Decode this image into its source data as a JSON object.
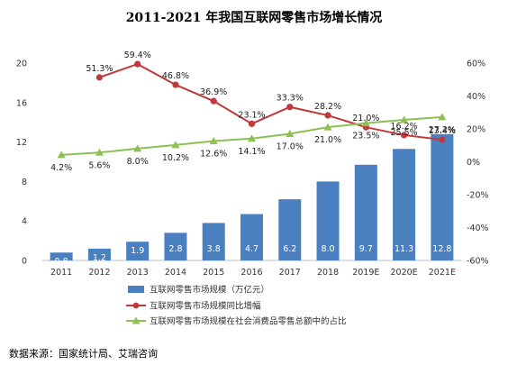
{
  "chart_data": {
    "type": "bar",
    "title": "2011-2021 年我国互联网零售市场增长情况",
    "categories": [
      "2011",
      "2012",
      "2013",
      "2014",
      "2015",
      "2016",
      "2017",
      "2018",
      "2019E",
      "2020E",
      "2021E"
    ],
    "series": [
      {
        "name": "互联网零售市场规模（万亿元）",
        "type": "bar",
        "axis": "left",
        "color": "#4a80c0",
        "values": [
          0.8,
          1.2,
          1.9,
          2.8,
          3.8,
          4.7,
          6.2,
          8.0,
          9.7,
          11.3,
          12.8
        ],
        "labels": [
          "0.8",
          "1.2",
          "1.9",
          "2.8",
          "3.8",
          "4.7",
          "6.2",
          "8.0",
          "9.7",
          "11.3",
          "12.8"
        ]
      },
      {
        "name": "互联网零售市场规模同比增幅",
        "type": "line",
        "axis": "right",
        "color": "#c0393b",
        "values": [
          null,
          51.3,
          59.4,
          46.8,
          36.9,
          23.1,
          33.3,
          28.2,
          21.0,
          16.2,
          13.4
        ],
        "labels": [
          "",
          "51.3%",
          "59.4%",
          "46.8%",
          "36.9%",
          "23.1%",
          "33.3%",
          "28.2%",
          "21.0%",
          "16.2%",
          "13.4%"
        ]
      },
      {
        "name": "互联网零售市场规模在社会消费品零售总额中的占比",
        "type": "line",
        "axis": "right",
        "color": "#8cc152",
        "values": [
          4.2,
          5.6,
          8.0,
          10.2,
          12.6,
          14.1,
          17.0,
          21.0,
          23.5,
          25.5,
          27.2
        ],
        "labels": [
          "4.2%",
          "5.6%",
          "8.0%",
          "10.2%",
          "12.6%",
          "14.1%",
          "17.0%",
          "21.0%",
          "23.5%",
          "25.5%",
          "27.2%"
        ]
      }
    ],
    "left_axis": {
      "range": [
        0,
        20
      ],
      "ticks": [
        "0",
        "4",
        "8",
        "12",
        "16",
        "20"
      ]
    },
    "right_axis": {
      "range": [
        -60,
        60
      ],
      "ticks": [
        "-60%",
        "-40%",
        "-20%",
        "0%",
        "20%",
        "40%",
        "60%"
      ]
    },
    "grid": false,
    "legend_position": "bottom-left"
  },
  "source_text": "数据来源：国家统计局、艾瑞咨询"
}
